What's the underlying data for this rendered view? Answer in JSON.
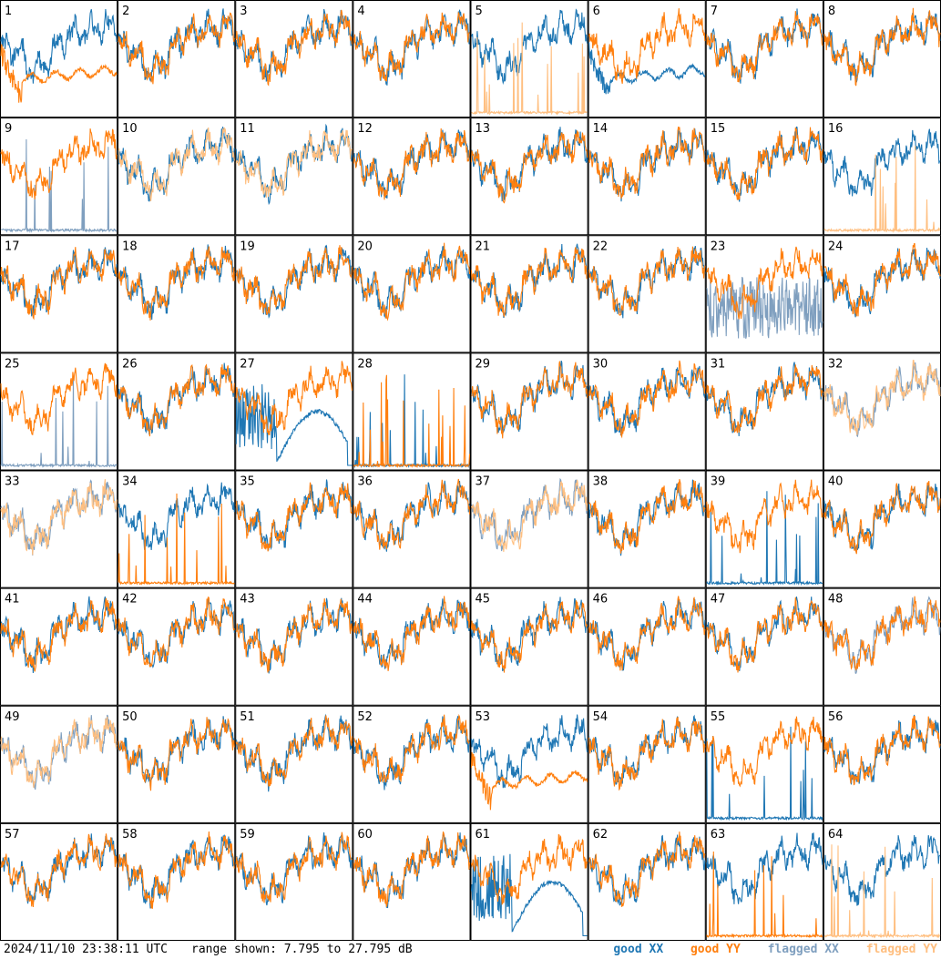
{
  "chart_data": {
    "type": "line",
    "layout": "8x8 small multiples",
    "y_range_db": [
      7.795,
      27.795
    ],
    "panels": [
      {
        "id": "1",
        "xx_flag": false,
        "yy_flag": false,
        "note": "YY flat/low in middle"
      },
      {
        "id": "2",
        "xx_flag": false,
        "yy_flag": false
      },
      {
        "id": "3",
        "xx_flag": false,
        "yy_flag": false
      },
      {
        "id": "4",
        "xx_flag": false,
        "yy_flag": false
      },
      {
        "id": "5",
        "xx_flag": false,
        "yy_flag": true,
        "note": "YY spikes from floor"
      },
      {
        "id": "6",
        "xx_flag": false,
        "yy_flag": false,
        "note": "XX dip"
      },
      {
        "id": "7",
        "xx_flag": false,
        "yy_flag": false
      },
      {
        "id": "8",
        "xx_flag": false,
        "yy_flag": false
      },
      {
        "id": "9",
        "xx_flag": true,
        "yy_flag": false,
        "note": "XX spikes from floor"
      },
      {
        "id": "10",
        "xx_flag": false,
        "yy_flag": true
      },
      {
        "id": "11",
        "xx_flag": false,
        "yy_flag": true
      },
      {
        "id": "12",
        "xx_flag": false,
        "yy_flag": false
      },
      {
        "id": "13",
        "xx_flag": false,
        "yy_flag": false
      },
      {
        "id": "14",
        "xx_flag": false,
        "yy_flag": false
      },
      {
        "id": "15",
        "xx_flag": false,
        "yy_flag": false
      },
      {
        "id": "16",
        "xx_flag": false,
        "yy_flag": true,
        "note": "YY spikes from floor"
      },
      {
        "id": "17",
        "xx_flag": false,
        "yy_flag": false
      },
      {
        "id": "18",
        "xx_flag": false,
        "yy_flag": false
      },
      {
        "id": "19",
        "xx_flag": false,
        "yy_flag": false
      },
      {
        "id": "20",
        "xx_flag": false,
        "yy_flag": false
      },
      {
        "id": "21",
        "xx_flag": false,
        "yy_flag": false
      },
      {
        "id": "22",
        "xx_flag": false,
        "yy_flag": false
      },
      {
        "id": "23",
        "xx_flag": true,
        "yy_flag": false,
        "note": "XX noisy low"
      },
      {
        "id": "24",
        "xx_flag": false,
        "yy_flag": false
      },
      {
        "id": "25",
        "xx_flag": true,
        "yy_flag": false,
        "note": "XX near floor"
      },
      {
        "id": "26",
        "xx_flag": false,
        "yy_flag": false
      },
      {
        "id": "27",
        "xx_flag": false,
        "yy_flag": false,
        "note": "XX arc shape"
      },
      {
        "id": "28",
        "xx_flag": false,
        "yy_flag": false,
        "note": "both spiky near floor"
      },
      {
        "id": "29",
        "xx_flag": false,
        "yy_flag": false
      },
      {
        "id": "30",
        "xx_flag": false,
        "yy_flag": false
      },
      {
        "id": "31",
        "xx_flag": false,
        "yy_flag": false
      },
      {
        "id": "32",
        "xx_flag": true,
        "yy_flag": true
      },
      {
        "id": "33",
        "xx_flag": true,
        "yy_flag": true
      },
      {
        "id": "34",
        "xx_flag": false,
        "yy_flag": false,
        "note": "YY spikes from floor"
      },
      {
        "id": "35",
        "xx_flag": false,
        "yy_flag": false
      },
      {
        "id": "36",
        "xx_flag": false,
        "yy_flag": false
      },
      {
        "id": "37",
        "xx_flag": true,
        "yy_flag": true
      },
      {
        "id": "38",
        "xx_flag": false,
        "yy_flag": false
      },
      {
        "id": "39",
        "xx_flag": false,
        "yy_flag": false,
        "note": "XX spikes from floor"
      },
      {
        "id": "40",
        "xx_flag": false,
        "yy_flag": false
      },
      {
        "id": "41",
        "xx_flag": false,
        "yy_flag": false
      },
      {
        "id": "42",
        "xx_flag": false,
        "yy_flag": false
      },
      {
        "id": "43",
        "xx_flag": false,
        "yy_flag": false
      },
      {
        "id": "44",
        "xx_flag": false,
        "yy_flag": false
      },
      {
        "id": "45",
        "xx_flag": false,
        "yy_flag": false
      },
      {
        "id": "46",
        "xx_flag": false,
        "yy_flag": false
      },
      {
        "id": "47",
        "xx_flag": false,
        "yy_flag": false
      },
      {
        "id": "48",
        "xx_flag": true,
        "yy_flag": false
      },
      {
        "id": "49",
        "xx_flag": true,
        "yy_flag": true
      },
      {
        "id": "50",
        "xx_flag": false,
        "yy_flag": false
      },
      {
        "id": "51",
        "xx_flag": false,
        "yy_flag": false
      },
      {
        "id": "52",
        "xx_flag": false,
        "yy_flag": false
      },
      {
        "id": "53",
        "xx_flag": false,
        "yy_flag": false,
        "note": "YY smooth arc"
      },
      {
        "id": "54",
        "xx_flag": false,
        "yy_flag": false
      },
      {
        "id": "55",
        "xx_flag": false,
        "yy_flag": false,
        "note": "XX spikes from floor"
      },
      {
        "id": "56",
        "xx_flag": false,
        "yy_flag": false
      },
      {
        "id": "57",
        "xx_flag": false,
        "yy_flag": false
      },
      {
        "id": "58",
        "xx_flag": false,
        "yy_flag": false
      },
      {
        "id": "59",
        "xx_flag": false,
        "yy_flag": false
      },
      {
        "id": "60",
        "xx_flag": false,
        "yy_flag": false
      },
      {
        "id": "61",
        "xx_flag": false,
        "yy_flag": false,
        "note": "XX arc shape"
      },
      {
        "id": "62",
        "xx_flag": false,
        "yy_flag": false
      },
      {
        "id": "63",
        "xx_flag": false,
        "yy_flag": false,
        "note": "YY spikes from floor"
      },
      {
        "id": "64",
        "xx_flag": false,
        "yy_flag": true,
        "note": "YY near floor"
      }
    ],
    "series_colors": {
      "good_xx": "#1f77b4",
      "good_yy": "#ff7f0e",
      "flagged_xx": "#7f9fbf",
      "flagged_yy": "#ffbf80"
    }
  },
  "footer": {
    "timestamp": "2024/11/10 23:38:11 UTC",
    "range_label": "range shown: ",
    "range_value": "7.795 to 27.795 dB"
  },
  "legend": {
    "good_xx": "good XX",
    "good_yy": "good YY",
    "flagged_xx": "flagged XX",
    "flagged_yy": "flagged YY"
  }
}
